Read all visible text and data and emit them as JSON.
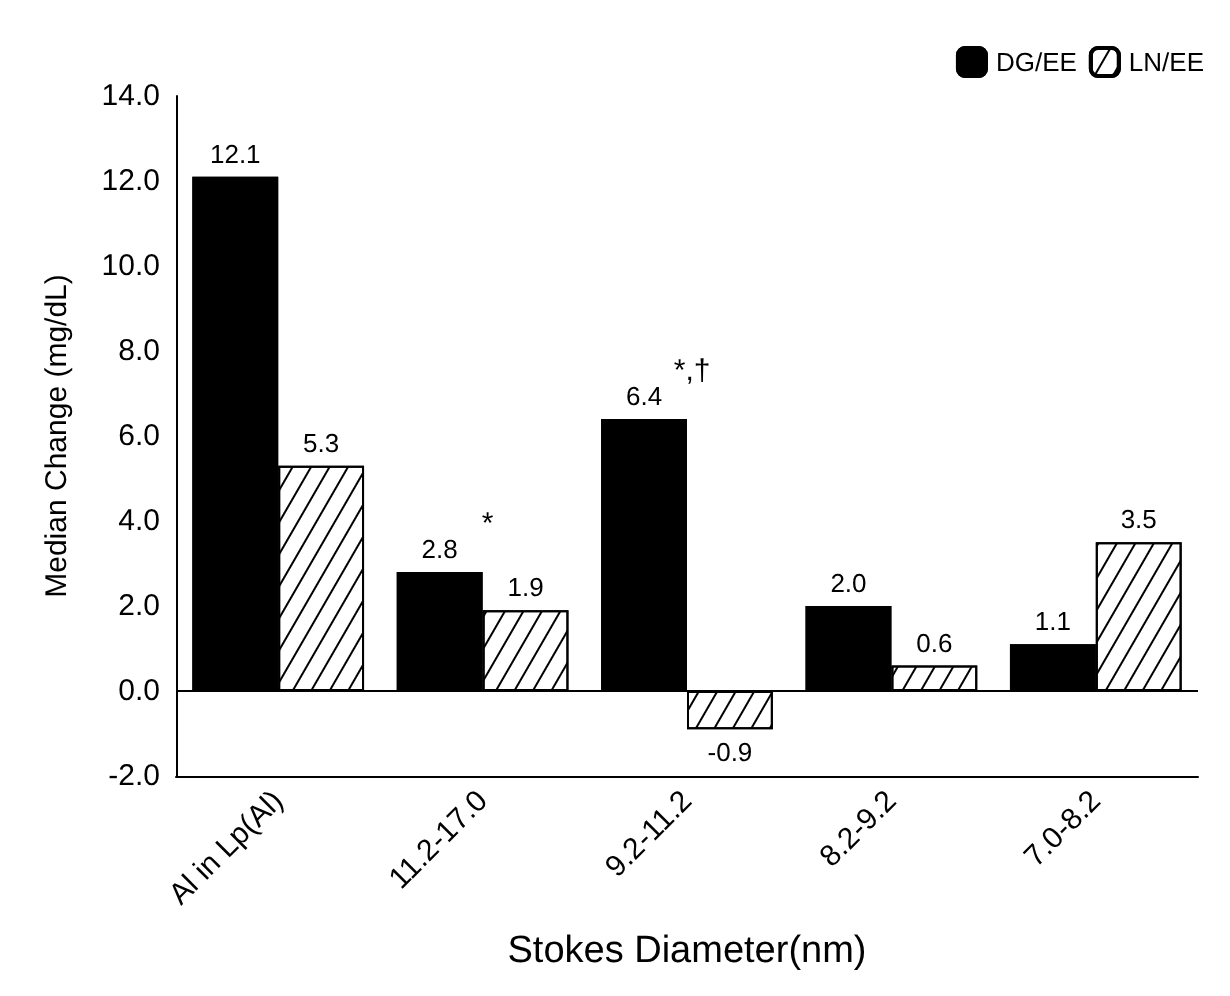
{
  "chart_data": {
    "type": "bar",
    "xlabel": "Stokes Diameter(nm)",
    "ylabel": "Median Change (mg/dL)",
    "categories": [
      "Al in Lp(Al)",
      "11.2-17.0",
      "9.2-11.2",
      "8.2-9.2",
      "7.0-8.2"
    ],
    "series": [
      {
        "name": "DG/EE",
        "color": "#000000",
        "values": [
          12.1,
          2.8,
          6.4,
          2.0,
          1.1
        ],
        "value_labels": [
          "12.1",
          "2.8",
          "6.4",
          "2.0",
          "1.1"
        ]
      },
      {
        "name": "LN/EE",
        "color": "#ffffff",
        "values": [
          5.3,
          1.9,
          -0.9,
          0.6,
          3.5
        ],
        "value_labels": [
          "5.3",
          "1.9",
          "-0.9",
          "0.6",
          "3.5"
        ]
      }
    ],
    "ylim": [
      -2,
      14
    ],
    "yticks": [
      {
        "value": -2,
        "label": "-2.0"
      },
      {
        "value": 0,
        "label": "0.0"
      },
      {
        "value": 2,
        "label": "2.0"
      },
      {
        "value": 4,
        "label": "4.0"
      },
      {
        "value": 6,
        "label": "6.0"
      },
      {
        "value": 8,
        "label": "8.0"
      },
      {
        "value": 10,
        "label": "10.0"
      },
      {
        "value": 12,
        "label": "12.0"
      },
      {
        "value": 14,
        "label": "14.0"
      }
    ],
    "annotations": [
      {
        "text": "*",
        "x": "11.2-17.0",
        "y": 2.8
      },
      {
        "text": "*,†",
        "x": "9.2-11.2",
        "y": 6.4
      }
    ],
    "ref_lines": [
      {
        "axis": "y",
        "value": 0,
        "color": "#000000"
      }
    ],
    "grid": false,
    "legend": "top right"
  }
}
